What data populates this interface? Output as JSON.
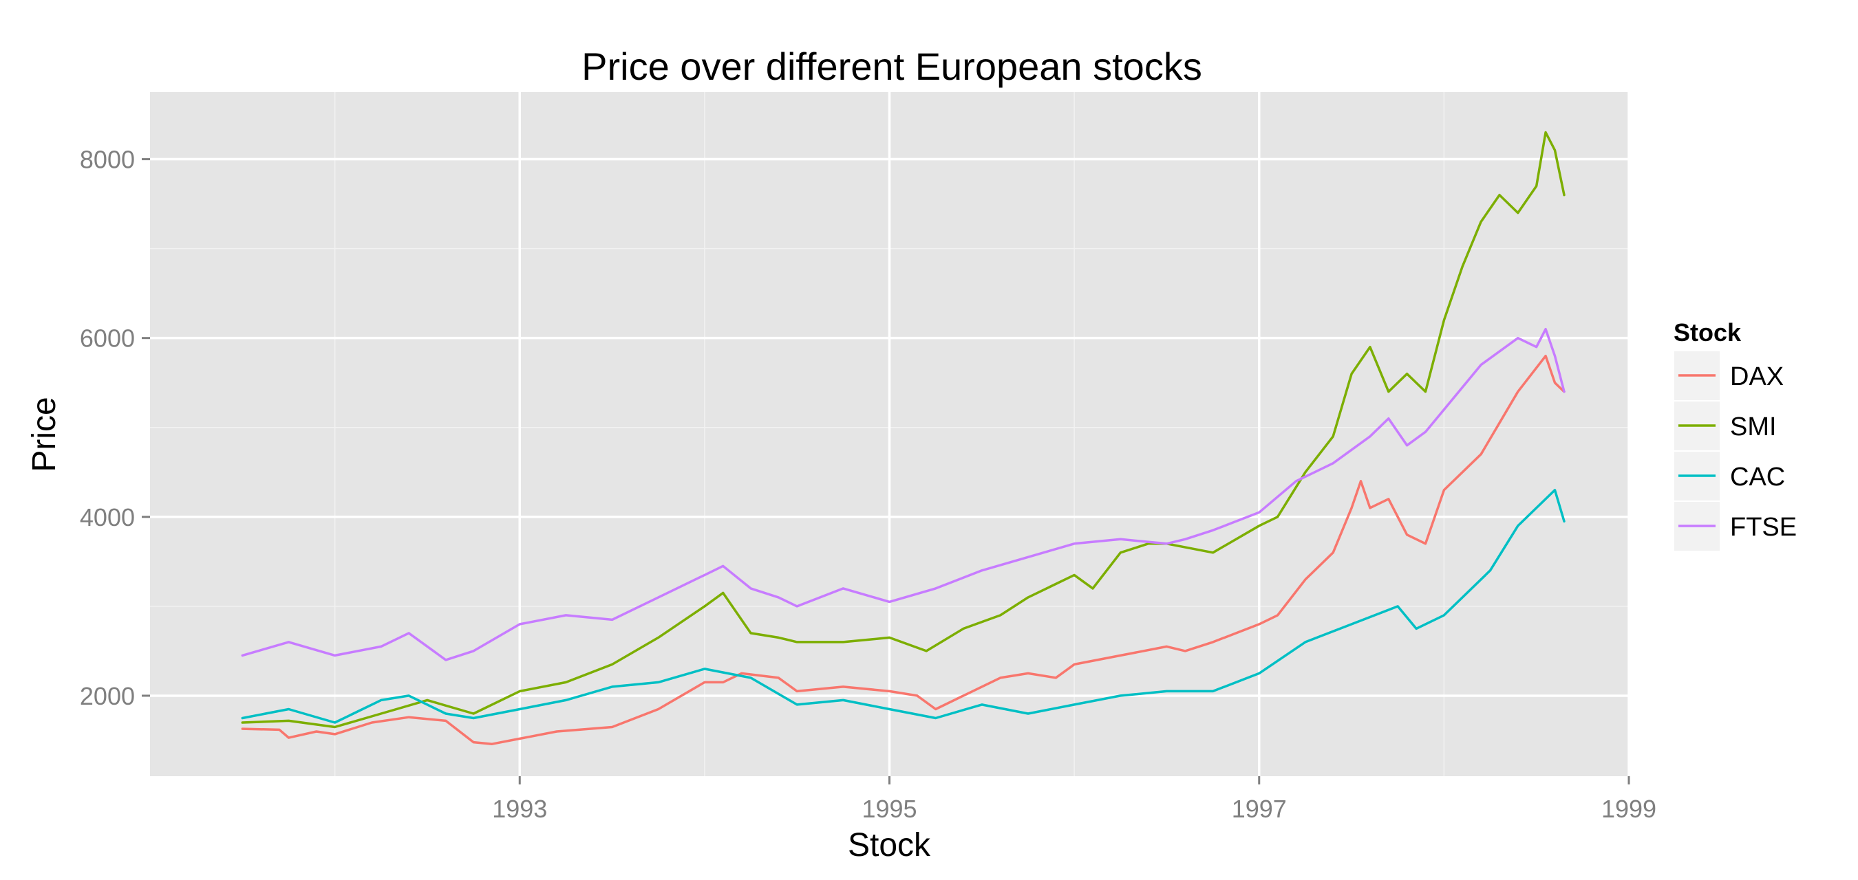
{
  "chart_data": {
    "type": "line",
    "title": "Price over different European stocks",
    "xlabel": "Stock",
    "ylabel": "Price",
    "xlim": [
      1991.0,
      1999.0
    ],
    "ylim": [
      1100,
      8750
    ],
    "x_ticks": [
      1993,
      1995,
      1997,
      1999
    ],
    "y_ticks": [
      2000,
      4000,
      6000,
      8000
    ],
    "grid": true,
    "legend": {
      "title": "Stock",
      "position": "right"
    },
    "series": [
      {
        "name": "DAX",
        "color": "#F8766D",
        "x": [
          1991.5,
          1991.7,
          1991.75,
          1991.9,
          1992.0,
          1992.2,
          1992.4,
          1992.6,
          1992.75,
          1992.85,
          1993.0,
          1993.2,
          1993.5,
          1993.75,
          1994.0,
          1994.1,
          1994.2,
          1994.4,
          1994.5,
          1994.75,
          1995.0,
          1995.15,
          1995.25,
          1995.4,
          1995.6,
          1995.75,
          1995.9,
          1996.0,
          1996.25,
          1996.5,
          1996.6,
          1996.75,
          1997.0,
          1997.1,
          1997.25,
          1997.4,
          1997.5,
          1997.55,
          1997.6,
          1997.7,
          1997.8,
          1997.9,
          1998.0,
          1998.2,
          1998.4,
          1998.55,
          1998.6,
          1998.65
        ],
        "values": [
          1630,
          1620,
          1530,
          1600,
          1570,
          1700,
          1760,
          1720,
          1480,
          1460,
          1520,
          1600,
          1650,
          1850,
          2150,
          2150,
          2250,
          2200,
          2050,
          2100,
          2050,
          2000,
          1850,
          2000,
          2200,
          2250,
          2200,
          2350,
          2450,
          2550,
          2500,
          2600,
          2800,
          2900,
          3300,
          3600,
          4100,
          4400,
          4100,
          4200,
          3800,
          3700,
          4300,
          4700,
          5400,
          5800,
          5500,
          5400
        ]
      },
      {
        "name": "SMI",
        "color": "#7CAE00",
        "x": [
          1991.5,
          1991.75,
          1992.0,
          1992.25,
          1992.5,
          1992.75,
          1993.0,
          1993.25,
          1993.5,
          1993.75,
          1994.0,
          1994.1,
          1994.25,
          1994.4,
          1994.5,
          1994.75,
          1995.0,
          1995.2,
          1995.4,
          1995.6,
          1995.75,
          1996.0,
          1996.1,
          1996.25,
          1996.4,
          1996.5,
          1996.75,
          1997.0,
          1997.1,
          1997.25,
          1997.4,
          1997.5,
          1997.6,
          1997.7,
          1997.8,
          1997.9,
          1998.0,
          1998.1,
          1998.2,
          1998.3,
          1998.4,
          1998.5,
          1998.55,
          1998.6,
          1998.65
        ],
        "values": [
          1700,
          1720,
          1650,
          1800,
          1950,
          1800,
          2050,
          2150,
          2350,
          2650,
          3000,
          3150,
          2700,
          2650,
          2600,
          2600,
          2650,
          2500,
          2750,
          2900,
          3100,
          3350,
          3200,
          3600,
          3700,
          3700,
          3600,
          3900,
          4000,
          4500,
          4900,
          5600,
          5900,
          5400,
          5600,
          5400,
          6200,
          6800,
          7300,
          7600,
          7400,
          7700,
          8300,
          8100,
          7600
        ]
      },
      {
        "name": "CAC",
        "color": "#00BFC4",
        "x": [
          1991.5,
          1991.75,
          1992.0,
          1992.25,
          1992.4,
          1992.6,
          1992.75,
          1993.0,
          1993.25,
          1993.5,
          1993.75,
          1994.0,
          1994.25,
          1994.5,
          1994.75,
          1995.0,
          1995.25,
          1995.5,
          1995.75,
          1996.0,
          1996.25,
          1996.5,
          1996.75,
          1997.0,
          1997.25,
          1997.5,
          1997.75,
          1997.85,
          1998.0,
          1998.25,
          1998.4,
          1998.55,
          1998.6,
          1998.65
        ],
        "values": [
          1750,
          1850,
          1700,
          1950,
          2000,
          1800,
          1750,
          1850,
          1950,
          2100,
          2150,
          2300,
          2200,
          1900,
          1950,
          1850,
          1750,
          1900,
          1800,
          1900,
          2000,
          2050,
          2050,
          2250,
          2600,
          2800,
          3000,
          2750,
          2900,
          3400,
          3900,
          4200,
          4300,
          3950
        ]
      },
      {
        "name": "FTSE",
        "color": "#C77CFF",
        "x": [
          1991.5,
          1991.75,
          1992.0,
          1992.25,
          1992.4,
          1992.6,
          1992.75,
          1993.0,
          1993.25,
          1993.5,
          1993.75,
          1994.0,
          1994.1,
          1994.25,
          1994.4,
          1994.5,
          1994.75,
          1995.0,
          1995.25,
          1995.5,
          1995.75,
          1996.0,
          1996.25,
          1996.5,
          1996.6,
          1996.75,
          1997.0,
          1997.2,
          1997.4,
          1997.6,
          1997.7,
          1997.8,
          1997.9,
          1998.0,
          1998.2,
          1998.4,
          1998.5,
          1998.55,
          1998.6,
          1998.65
        ],
        "values": [
          2450,
          2600,
          2450,
          2550,
          2700,
          2400,
          2500,
          2800,
          2900,
          2850,
          3100,
          3350,
          3450,
          3200,
          3100,
          3000,
          3200,
          3050,
          3200,
          3400,
          3550,
          3700,
          3750,
          3700,
          3750,
          3850,
          4050,
          4400,
          4600,
          4900,
          5100,
          4800,
          4950,
          5200,
          5700,
          6000,
          5900,
          6100,
          5800,
          5400
        ]
      }
    ]
  }
}
